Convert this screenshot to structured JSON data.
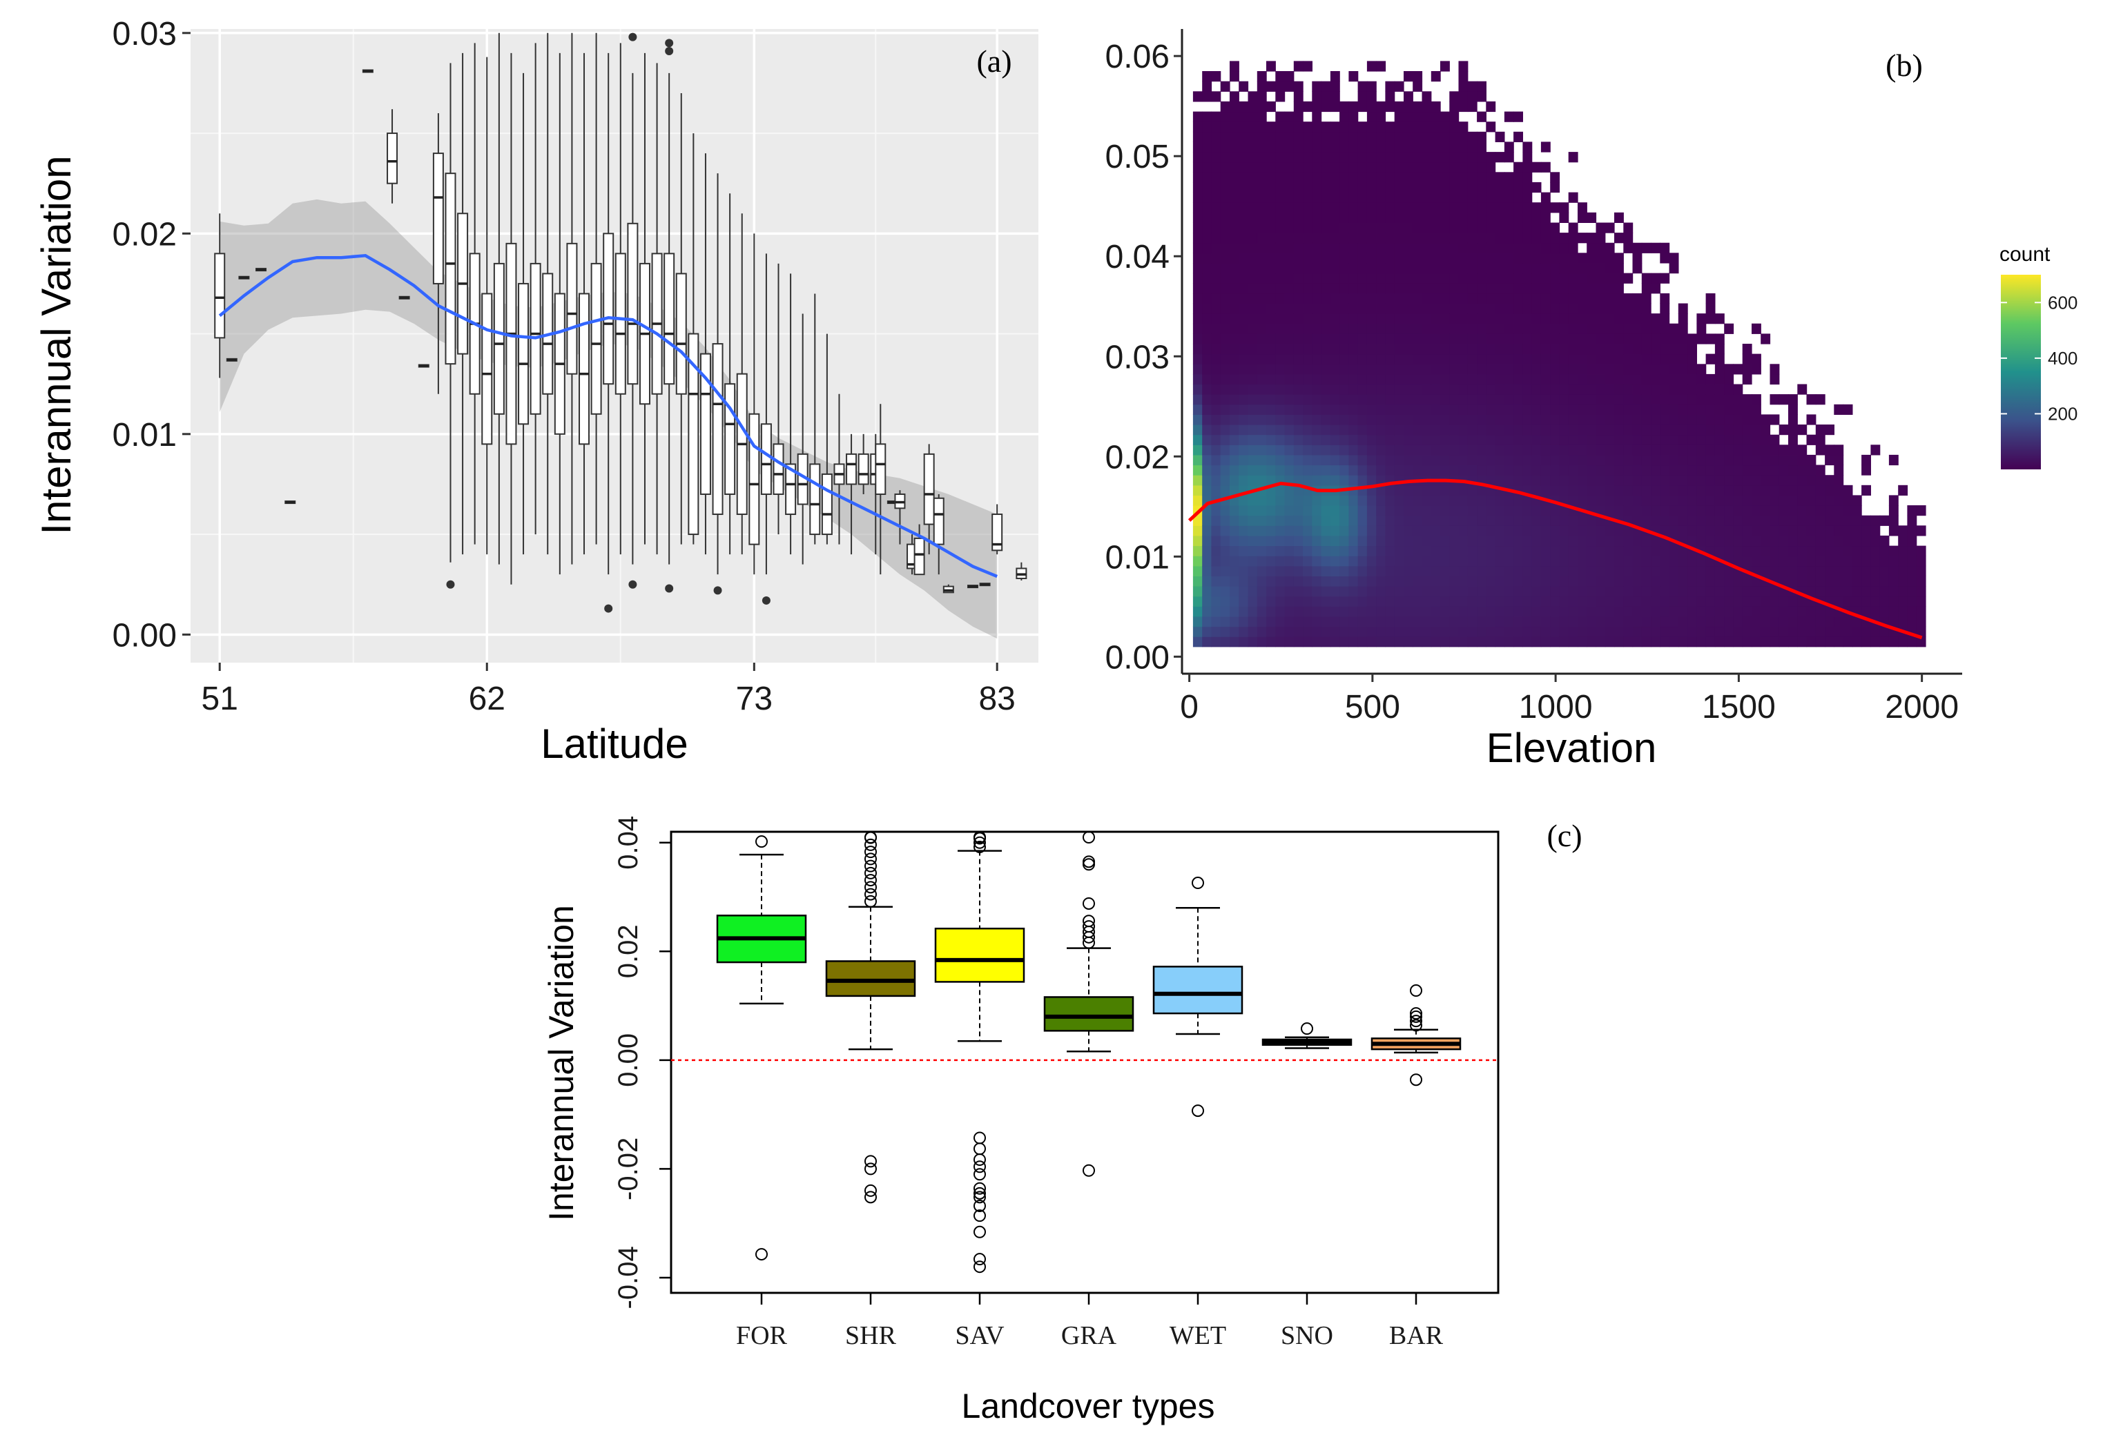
{
  "chart_data": [
    {
      "panel": "(a)",
      "type": "boxplot",
      "xlabel": "Latitude",
      "ylabel": "Interannual Variation",
      "xticks": [
        "51",
        "62",
        "73",
        "83"
      ],
      "yticks": [
        "0.00",
        "0.01",
        "0.02",
        "0.03"
      ],
      "xlim": [
        49.8,
        84.7
      ],
      "ylim": [
        -0.0014,
        0.0302
      ],
      "boxes": [
        {
          "x": 51.0,
          "min": 0.0128,
          "q1": 0.0148,
          "med": 0.0168,
          "q3": 0.019,
          "max": 0.021
        },
        {
          "x": 51.5,
          "min": 0.0137,
          "q1": 0.0137,
          "med": 0.0137,
          "q3": 0.0137,
          "max": 0.0137
        },
        {
          "x": 52.0,
          "min": 0.0178,
          "q1": 0.0178,
          "med": 0.0178,
          "q3": 0.0178,
          "max": 0.0178
        },
        {
          "x": 52.7,
          "min": 0.0182,
          "q1": 0.0182,
          "med": 0.0182,
          "q3": 0.0182,
          "max": 0.0182
        },
        {
          "x": 53.9,
          "min": 0.0066,
          "q1": 0.0066,
          "med": 0.0066,
          "q3": 0.0066,
          "max": 0.0066
        },
        {
          "x": 57.1,
          "min": 0.0281,
          "q1": 0.0281,
          "med": 0.0281,
          "q3": 0.0281,
          "max": 0.0281
        },
        {
          "x": 58.1,
          "min": 0.0215,
          "q1": 0.0225,
          "med": 0.0236,
          "q3": 0.025,
          "max": 0.0262
        },
        {
          "x": 58.6,
          "min": 0.0168,
          "q1": 0.0168,
          "med": 0.0168,
          "q3": 0.0168,
          "max": 0.0168
        },
        {
          "x": 59.4,
          "min": 0.0134,
          "q1": 0.0134,
          "med": 0.0134,
          "q3": 0.0134,
          "max": 0.0134
        },
        {
          "x": 60.0,
          "min": 0.012,
          "q1": 0.0175,
          "med": 0.0218,
          "q3": 0.024,
          "max": 0.026
        },
        {
          "x": 60.5,
          "min": 0.0036,
          "q1": 0.0135,
          "med": 0.0185,
          "q3": 0.023,
          "max": 0.0285,
          "out": [
            0.0025
          ]
        },
        {
          "x": 61.0,
          "min": 0.004,
          "q1": 0.014,
          "med": 0.0175,
          "q3": 0.021,
          "max": 0.029
        },
        {
          "x": 61.5,
          "min": 0.0045,
          "q1": 0.012,
          "med": 0.0155,
          "q3": 0.019,
          "max": 0.0295
        },
        {
          "x": 62.0,
          "min": 0.004,
          "q1": 0.0095,
          "med": 0.013,
          "q3": 0.017,
          "max": 0.0288
        },
        {
          "x": 62.5,
          "min": 0.0035,
          "q1": 0.011,
          "med": 0.0145,
          "q3": 0.0185,
          "max": 0.03
        },
        {
          "x": 63.0,
          "min": 0.0025,
          "q1": 0.0095,
          "med": 0.015,
          "q3": 0.0195,
          "max": 0.029
        },
        {
          "x": 63.5,
          "min": 0.004,
          "q1": 0.0105,
          "med": 0.0135,
          "q3": 0.0175,
          "max": 0.028
        },
        {
          "x": 64.0,
          "min": 0.005,
          "q1": 0.011,
          "med": 0.015,
          "q3": 0.0185,
          "max": 0.0295
        },
        {
          "x": 64.5,
          "min": 0.004,
          "q1": 0.012,
          "med": 0.0145,
          "q3": 0.018,
          "max": 0.03
        },
        {
          "x": 65.0,
          "min": 0.003,
          "q1": 0.01,
          "med": 0.0135,
          "q3": 0.017,
          "max": 0.029
        },
        {
          "x": 65.5,
          "min": 0.0035,
          "q1": 0.013,
          "med": 0.016,
          "q3": 0.0195,
          "max": 0.03
        },
        {
          "x": 66.0,
          "min": 0.004,
          "q1": 0.0095,
          "med": 0.013,
          "q3": 0.017,
          "max": 0.029
        },
        {
          "x": 66.5,
          "min": 0.0045,
          "q1": 0.011,
          "med": 0.0145,
          "q3": 0.0185,
          "max": 0.03
        },
        {
          "x": 67.0,
          "min": 0.003,
          "q1": 0.0125,
          "med": 0.0155,
          "q3": 0.02,
          "max": 0.029,
          "out": [
            0.0013
          ]
        },
        {
          "x": 67.5,
          "min": 0.004,
          "q1": 0.012,
          "med": 0.015,
          "q3": 0.019,
          "max": 0.0295
        },
        {
          "x": 68.0,
          "min": 0.0035,
          "q1": 0.0125,
          "med": 0.0155,
          "q3": 0.0205,
          "max": 0.028,
          "out": [
            0.0025,
            0.0298
          ]
        },
        {
          "x": 68.5,
          "min": 0.0045,
          "q1": 0.0115,
          "med": 0.015,
          "q3": 0.0185,
          "max": 0.029
        },
        {
          "x": 69.0,
          "min": 0.004,
          "q1": 0.012,
          "med": 0.0155,
          "q3": 0.019,
          "max": 0.0285
        },
        {
          "x": 69.5,
          "min": 0.0035,
          "q1": 0.0125,
          "med": 0.015,
          "q3": 0.019,
          "max": 0.028,
          "out": [
            0.0023,
            0.0295,
            0.0291
          ]
        },
        {
          "x": 70.0,
          "min": 0.0045,
          "q1": 0.012,
          "med": 0.0145,
          "q3": 0.018,
          "max": 0.027
        },
        {
          "x": 70.5,
          "min": 0.0045,
          "q1": 0.005,
          "med": 0.012,
          "q3": 0.015,
          "max": 0.025
        },
        {
          "x": 71.0,
          "min": 0.004,
          "q1": 0.007,
          "med": 0.012,
          "q3": 0.014,
          "max": 0.024
        },
        {
          "x": 71.5,
          "min": 0.003,
          "q1": 0.006,
          "med": 0.0115,
          "q3": 0.0145,
          "max": 0.023,
          "out": [
            0.0022
          ]
        },
        {
          "x": 72.0,
          "min": 0.004,
          "q1": 0.007,
          "med": 0.0105,
          "q3": 0.0125,
          "max": 0.022
        },
        {
          "x": 72.5,
          "min": 0.004,
          "q1": 0.006,
          "med": 0.0095,
          "q3": 0.013,
          "max": 0.021
        },
        {
          "x": 73.0,
          "min": 0.003,
          "q1": 0.0045,
          "med": 0.0075,
          "q3": 0.011,
          "max": 0.02
        },
        {
          "x": 73.5,
          "min": 0.003,
          "q1": 0.007,
          "med": 0.0085,
          "q3": 0.0105,
          "max": 0.019,
          "out": [
            0.0017
          ]
        },
        {
          "x": 74.0,
          "min": 0.005,
          "q1": 0.007,
          "med": 0.008,
          "q3": 0.0095,
          "max": 0.0185
        },
        {
          "x": 74.5,
          "min": 0.004,
          "q1": 0.006,
          "med": 0.0075,
          "q3": 0.0085,
          "max": 0.018
        },
        {
          "x": 75.0,
          "min": 0.0035,
          "q1": 0.0065,
          "med": 0.0075,
          "q3": 0.009,
          "max": 0.016
        },
        {
          "x": 75.5,
          "min": 0.0045,
          "q1": 0.005,
          "med": 0.0065,
          "q3": 0.0085,
          "max": 0.017
        },
        {
          "x": 76.0,
          "min": 0.0045,
          "q1": 0.005,
          "med": 0.006,
          "q3": 0.008,
          "max": 0.015
        },
        {
          "x": 76.5,
          "min": 0.0045,
          "q1": 0.0075,
          "med": 0.008,
          "q3": 0.0085,
          "max": 0.012
        },
        {
          "x": 77.0,
          "min": 0.004,
          "q1": 0.0075,
          "med": 0.0085,
          "q3": 0.009,
          "max": 0.01
        },
        {
          "x": 77.5,
          "min": 0.007,
          "q1": 0.0075,
          "med": 0.008,
          "q3": 0.009,
          "max": 0.01
        },
        {
          "x": 78.0,
          "min": 0.004,
          "q1": 0.0075,
          "med": 0.008,
          "q3": 0.009,
          "max": 0.01
        },
        {
          "x": 78.2,
          "min": 0.003,
          "q1": 0.007,
          "med": 0.0085,
          "q3": 0.0095,
          "max": 0.0115
        },
        {
          "x": 78.7,
          "min": 0.0066,
          "q1": 0.0066,
          "med": 0.0066,
          "q3": 0.0066,
          "max": 0.0066
        },
        {
          "x": 79.0,
          "min": 0.0045,
          "q1": 0.0063,
          "med": 0.0066,
          "q3": 0.007,
          "max": 0.0072
        },
        {
          "x": 79.5,
          "min": 0.003,
          "q1": 0.0033,
          "med": 0.0035,
          "q3": 0.0045,
          "max": 0.005
        },
        {
          "x": 79.8,
          "min": 0.003,
          "q1": 0.003,
          "med": 0.004,
          "q3": 0.0048,
          "max": 0.0055
        },
        {
          "x": 80.2,
          "min": 0.004,
          "q1": 0.0055,
          "med": 0.007,
          "q3": 0.009,
          "max": 0.0095
        },
        {
          "x": 80.6,
          "min": 0.003,
          "q1": 0.0045,
          "med": 0.006,
          "q3": 0.0068,
          "max": 0.007
        },
        {
          "x": 81.0,
          "min": 0.0021,
          "q1": 0.0021,
          "med": 0.0022,
          "q3": 0.0024,
          "max": 0.0025
        },
        {
          "x": 82.0,
          "min": 0.0024,
          "q1": 0.0024,
          "med": 0.0024,
          "q3": 0.0024,
          "max": 0.0024
        },
        {
          "x": 82.5,
          "min": 0.0025,
          "q1": 0.0025,
          "med": 0.0025,
          "q3": 0.0025,
          "max": 0.0025
        },
        {
          "x": 83.0,
          "min": 0.004,
          "q1": 0.0042,
          "med": 0.0045,
          "q3": 0.006,
          "max": 0.0065
        },
        {
          "x": 84.0,
          "min": 0.0027,
          "q1": 0.0028,
          "med": 0.003,
          "q3": 0.0033,
          "max": 0.0036
        }
      ],
      "smooth": {
        "x": [
          51,
          52,
          53,
          54,
          55,
          56,
          57,
          58,
          59,
          60,
          61,
          62,
          63,
          64,
          65,
          66,
          67,
          68,
          69,
          70,
          71,
          72,
          73,
          74,
          75,
          76,
          77,
          78,
          79,
          80,
          81,
          82,
          83
        ],
        "y": [
          0.0159,
          0.0169,
          0.0178,
          0.0186,
          0.0188,
          0.0188,
          0.0189,
          0.0182,
          0.0174,
          0.0164,
          0.0158,
          0.0152,
          0.0149,
          0.0148,
          0.0151,
          0.0155,
          0.0158,
          0.0157,
          0.015,
          0.0141,
          0.0128,
          0.0113,
          0.0094,
          0.0086,
          0.0079,
          0.0072,
          0.0066,
          0.006,
          0.0054,
          0.0048,
          0.0041,
          0.0034,
          0.0029
        ],
        "lower": [
          0.0111,
          0.014,
          0.0152,
          0.0158,
          0.0159,
          0.016,
          0.0162,
          0.0161,
          0.0155,
          0.0147,
          0.0141,
          0.0136,
          0.0134,
          0.0133,
          0.0136,
          0.0141,
          0.0145,
          0.0144,
          0.0136,
          0.0126,
          0.0114,
          0.01,
          0.0082,
          0.0074,
          0.0066,
          0.0058,
          0.005,
          0.004,
          0.003,
          0.0022,
          0.0012,
          0.0004,
          -0.0002
        ],
        "upper": [
          0.0206,
          0.0204,
          0.0205,
          0.0215,
          0.0217,
          0.0215,
          0.0216,
          0.0205,
          0.0193,
          0.0181,
          0.0175,
          0.0168,
          0.0164,
          0.0163,
          0.0166,
          0.0169,
          0.0171,
          0.017,
          0.0164,
          0.0156,
          0.0143,
          0.0127,
          0.0107,
          0.0098,
          0.0092,
          0.0086,
          0.0082,
          0.008,
          0.0078,
          0.0074,
          0.007,
          0.0065,
          0.006
        ]
      }
    },
    {
      "panel": "(b)",
      "type": "heatmap",
      "xlabel": "Elevation",
      "ylabel": "",
      "xticks": [
        "0",
        "500",
        "1000",
        "1500",
        "2000"
      ],
      "yticks": [
        "0.00",
        "0.01",
        "0.02",
        "0.03",
        "0.04",
        "0.05",
        "0.06"
      ],
      "xlim": [
        -20,
        2110
      ],
      "ylim": [
        -0.0017,
        0.0627
      ],
      "legend_title": "count",
      "legend_ticks": [
        "200",
        "400",
        "600"
      ],
      "color_range": [
        0,
        700
      ],
      "smooth": {
        "x": [
          0,
          50,
          100,
          150,
          200,
          250,
          300,
          350,
          400,
          450,
          500,
          550,
          600,
          650,
          700,
          750,
          800,
          850,
          900,
          950,
          1000,
          1100,
          1200,
          1300,
          1400,
          1500,
          1600,
          1700,
          1800,
          1900,
          2000
        ],
        "y": [
          0.0136,
          0.0153,
          0.0158,
          0.0163,
          0.0168,
          0.0173,
          0.0171,
          0.0166,
          0.0166,
          0.0168,
          0.017,
          0.0173,
          0.0175,
          0.0176,
          0.0176,
          0.0175,
          0.0172,
          0.0168,
          0.0164,
          0.0159,
          0.0154,
          0.0143,
          0.0132,
          0.0119,
          0.0104,
          0.0088,
          0.0073,
          0.0058,
          0.0044,
          0.0031,
          0.0019
        ]
      }
    },
    {
      "panel": "(c)",
      "type": "boxplot",
      "xlabel": "Landcover types",
      "ylabel": "Interannual Variation",
      "yticks": [
        "-0.04",
        "-0.02",
        "0.00",
        "0.02",
        "0.04"
      ],
      "ylim": [
        -0.0428,
        0.042
      ],
      "reference_line": 0,
      "categories": [
        "FOR",
        "SHR",
        "SAV",
        "GRA",
        "WET",
        "SNO",
        "BAR"
      ],
      "boxes": [
        {
          "name": "FOR",
          "color": "#0ff022",
          "min": 0.0104,
          "q1": 0.018,
          "med": 0.0224,
          "q3": 0.0266,
          "max": 0.0378,
          "out": [
            0.0402,
            -0.0357
          ]
        },
        {
          "name": "SHR",
          "color": "#7d7200",
          "min": 0.002,
          "q1": 0.0118,
          "med": 0.0146,
          "q3": 0.0182,
          "max": 0.0282,
          "out": [
            0.0292,
            0.0305,
            0.0318,
            0.0331,
            0.0344,
            0.0357,
            0.037,
            0.0383,
            0.0396,
            0.0409,
            0.042,
            -0.0186,
            -0.02,
            -0.024,
            -0.0252
          ]
        },
        {
          "name": "SAV",
          "color": "#ffff00",
          "min": 0.0035,
          "q1": 0.0144,
          "med": 0.0184,
          "q3": 0.0242,
          "max": 0.0385,
          "out": [
            0.0392,
            0.04,
            0.0408,
            0.0416,
            0.042,
            -0.0143,
            -0.0163,
            -0.0183,
            -0.0196,
            -0.021,
            -0.0236,
            -0.0245,
            -0.0252,
            -0.0268,
            -0.0286,
            -0.0316,
            -0.0366,
            -0.038
          ]
        },
        {
          "name": "GRA",
          "color": "#4b8000",
          "min": 0.0016,
          "q1": 0.0054,
          "med": 0.008,
          "q3": 0.0116,
          "max": 0.0206,
          "out": [
            0.0216,
            0.0226,
            0.0236,
            0.0246,
            0.0256,
            0.0288,
            0.036,
            0.0365,
            0.0432,
            -0.0203
          ]
        },
        {
          "name": "WET",
          "color": "#87cefa",
          "min": 0.0048,
          "q1": 0.0086,
          "med": 0.0122,
          "q3": 0.0172,
          "max": 0.028,
          "out": [
            0.0326,
            -0.0093
          ]
        },
        {
          "name": "SNO",
          "color": "#4fb6d3",
          "min": 0.0022,
          "q1": 0.0028,
          "med": 0.0033,
          "q3": 0.0038,
          "max": 0.0042,
          "out": [
            0.0058
          ]
        },
        {
          "name": "BAR",
          "color": "#f4a460",
          "min": 0.0014,
          "q1": 0.002,
          "med": 0.003,
          "q3": 0.004,
          "max": 0.0056,
          "out": [
            0.0064,
            0.0072,
            0.008,
            0.0086,
            0.0128,
            -0.0036
          ]
        }
      ]
    }
  ]
}
